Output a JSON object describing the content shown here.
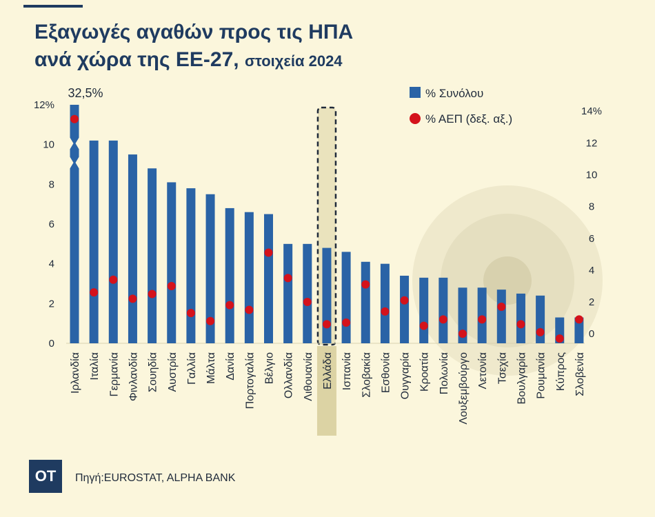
{
  "title": {
    "line1": "Εξαγωγές αγαθών προς τις ΗΠΑ",
    "line2_main": "ανά χώρα της ΕΕ-27,",
    "line2_sub": "στοιχεία 2024"
  },
  "colors": {
    "bar": "#2a63a6",
    "dot": "#d4121b",
    "title": "#1f3b60",
    "highlight": "#dcd3a4",
    "background": "#fbf6dc"
  },
  "chart_data": {
    "type": "bar",
    "title": "Εξαγωγές αγαθών προς τις ΗΠΑ ανά χώρα της ΕΕ-27, στοιχεία 2024",
    "categories": [
      "Ιρλανδία",
      "Ιταλία",
      "Γερμανία",
      "Φινλανδία",
      "Σουηδία",
      "Αυστρία",
      "Γαλλία",
      "Μάλτα",
      "Δανία",
      "Πορτογαλία",
      "Βέλγιο",
      "Ολλανδία",
      "Λιθουανία",
      "Ελλάδα",
      "Ισπανία",
      "Σλοβακία",
      "Εσθονία",
      "Ουγγαρία",
      "Κροατία",
      "Πολωνία",
      "Λουξεμβούργο",
      "Λετονία",
      "Τσεχία",
      "Βουλγαρία",
      "Ρουμανία",
      "Κύπρος",
      "Σλοβενία"
    ],
    "series": [
      {
        "name": "% Συνόλου",
        "axis": "left",
        "values": [
          32.5,
          10.2,
          10.2,
          9.5,
          8.8,
          8.1,
          7.8,
          7.5,
          6.8,
          6.6,
          6.5,
          5.0,
          5.0,
          4.8,
          4.6,
          4.1,
          4.0,
          3.4,
          3.3,
          3.3,
          2.8,
          2.8,
          2.7,
          2.5,
          2.4,
          1.3,
          1.3
        ]
      },
      {
        "name": "% ΑΕΠ (δεξ. αξ.)",
        "axis": "right",
        "values": [
          13.5,
          2.6,
          3.4,
          2.2,
          2.5,
          3.0,
          1.3,
          0.8,
          1.8,
          1.5,
          5.1,
          3.5,
          2.0,
          0.6,
          0.7,
          3.1,
          1.4,
          2.1,
          0.5,
          0.9,
          0.0,
          0.9,
          1.7,
          0.6,
          0.1,
          -0.3,
          0.9
        ]
      }
    ],
    "highlight_category": "Ελλάδα",
    "y_left": {
      "ticks": [
        "0",
        "2",
        "4",
        "6",
        "8",
        "10",
        "12%"
      ],
      "ylim": [
        0,
        12
      ],
      "axis_break": true
    },
    "y_right": {
      "ticks": [
        "0",
        "2",
        "4",
        "6",
        "8",
        "10",
        "12",
        "14%"
      ],
      "ylim": [
        -0.6,
        14.4
      ]
    },
    "annotations": [
      {
        "category": "Ιρλανδία",
        "text": "32,5%"
      }
    ],
    "legend": {
      "position": "top-right",
      "entries": [
        "% Συνόλου",
        "% ΑΕΠ (δεξ. αξ.)"
      ]
    }
  },
  "footer": {
    "logo": "OT",
    "source": "Πηγή:EUROSTAT, ALPHA BANK"
  }
}
